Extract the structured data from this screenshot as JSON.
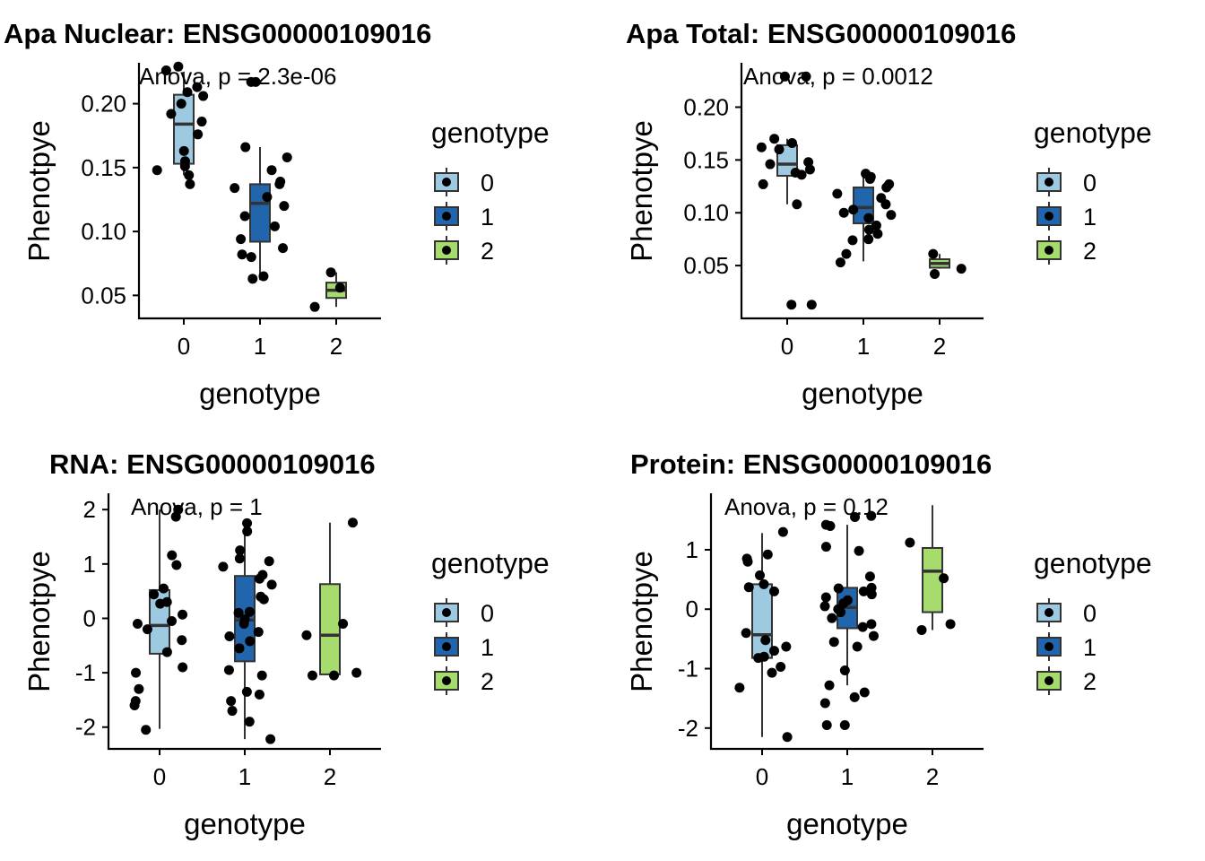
{
  "colors": {
    "g0": "#9ECAE1",
    "g1": "#2166AC",
    "g2": "#A6DB6E",
    "point": "#000000",
    "box_stroke": "#333333"
  },
  "chart_data": [
    {
      "type": "box",
      "title": "Apa Nuclear: ENSG00000109016",
      "annotation": "Anova, p = 2.3e-06",
      "xlabel": "genotype",
      "ylabel": "Phenotpye",
      "categories": [
        "0",
        "1",
        "2"
      ],
      "yticks": [
        0.05,
        0.1,
        0.15,
        0.2
      ],
      "ytick_labels": [
        "0.05",
        "0.10",
        "0.15",
        "0.20"
      ],
      "ylim": [
        0.032,
        0.232
      ],
      "legend": {
        "title": "genotype",
        "entries": [
          "0",
          "1",
          "2"
        ]
      },
      "boxes": [
        {
          "group": "0",
          "lower": 0.144,
          "q1": 0.153,
          "median": 0.184,
          "q3": 0.207,
          "upper": 0.225
        },
        {
          "group": "1",
          "lower": 0.062,
          "q1": 0.092,
          "median": 0.122,
          "q3": 0.137,
          "upper": 0.166
        },
        {
          "group": "2",
          "lower": 0.041,
          "q1": 0.048,
          "median": 0.054,
          "q3": 0.06,
          "upper": 0.068
        }
      ],
      "points": [
        {
          "x": 0,
          "y": 0.226
        },
        {
          "x": 0,
          "y": 0.213
        },
        {
          "x": 0,
          "y": 0.209
        },
        {
          "x": 0,
          "y": 0.2
        },
        {
          "x": 0,
          "y": 0.192
        },
        {
          "x": 0,
          "y": 0.186
        },
        {
          "x": 0,
          "y": 0.176
        },
        {
          "x": 0,
          "y": 0.163
        },
        {
          "x": 0,
          "y": 0.155
        },
        {
          "x": 0,
          "y": 0.151
        },
        {
          "x": 0,
          "y": 0.148
        },
        {
          "x": 0,
          "y": 0.144
        },
        {
          "x": 0,
          "y": 0.137
        },
        {
          "x": 0,
          "y": 0.229
        },
        {
          "x": 0,
          "y": 0.206
        },
        {
          "x": 1,
          "y": 0.217
        },
        {
          "x": 1,
          "y": 0.217
        },
        {
          "x": 1,
          "y": 0.166
        },
        {
          "x": 1,
          "y": 0.158
        },
        {
          "x": 1,
          "y": 0.148
        },
        {
          "x": 1,
          "y": 0.139
        },
        {
          "x": 1,
          "y": 0.137
        },
        {
          "x": 1,
          "y": 0.134
        },
        {
          "x": 1,
          "y": 0.127
        },
        {
          "x": 1,
          "y": 0.12
        },
        {
          "x": 1,
          "y": 0.112
        },
        {
          "x": 1,
          "y": 0.104
        },
        {
          "x": 1,
          "y": 0.094
        },
        {
          "x": 1,
          "y": 0.087
        },
        {
          "x": 1,
          "y": 0.082
        },
        {
          "x": 1,
          "y": 0.08
        },
        {
          "x": 1,
          "y": 0.065
        },
        {
          "x": 1,
          "y": 0.063
        },
        {
          "x": 2,
          "y": 0.068
        },
        {
          "x": 2,
          "y": 0.056
        },
        {
          "x": 2,
          "y": 0.041
        }
      ]
    },
    {
      "type": "box",
      "title": "Apa Total: ENSG00000109016",
      "annotation": "Anova, p = 0.0012",
      "xlabel": "genotype",
      "ylabel": "Phenotpye",
      "categories": [
        "0",
        "1",
        "2"
      ],
      "yticks": [
        0.05,
        0.1,
        0.15,
        0.2
      ],
      "ytick_labels": [
        "0.05",
        "0.10",
        "0.15",
        "0.20"
      ],
      "ylim": [
        0.0,
        0.242
      ],
      "legend": {
        "title": "genotype",
        "entries": [
          "0",
          "1",
          "2"
        ]
      },
      "boxes": [
        {
          "group": "0",
          "lower": 0.108,
          "q1": 0.135,
          "median": 0.146,
          "q3": 0.164,
          "upper": 0.17
        },
        {
          "group": "1",
          "lower": 0.054,
          "q1": 0.09,
          "median": 0.105,
          "q3": 0.124,
          "upper": 0.134
        },
        {
          "group": "2",
          "lower": 0.047,
          "q1": 0.048,
          "median": 0.052,
          "q3": 0.056,
          "upper": 0.061
        }
      ],
      "points": [
        {
          "x": 0,
          "y": 0.229
        },
        {
          "x": 0,
          "y": 0.229
        },
        {
          "x": 0,
          "y": 0.17
        },
        {
          "x": 0,
          "y": 0.166
        },
        {
          "x": 0,
          "y": 0.162
        },
        {
          "x": 0,
          "y": 0.16
        },
        {
          "x": 0,
          "y": 0.148
        },
        {
          "x": 0,
          "y": 0.146
        },
        {
          "x": 0,
          "y": 0.141
        },
        {
          "x": 0,
          "y": 0.138
        },
        {
          "x": 0,
          "y": 0.136
        },
        {
          "x": 0,
          "y": 0.127
        },
        {
          "x": 0,
          "y": 0.108
        },
        {
          "x": 0,
          "y": 0.013
        },
        {
          "x": 0,
          "y": 0.013
        },
        {
          "x": 1,
          "y": 0.137
        },
        {
          "x": 1,
          "y": 0.134
        },
        {
          "x": 1,
          "y": 0.132
        },
        {
          "x": 1,
          "y": 0.127
        },
        {
          "x": 1,
          "y": 0.124
        },
        {
          "x": 1,
          "y": 0.118
        },
        {
          "x": 1,
          "y": 0.114
        },
        {
          "x": 1,
          "y": 0.108
        },
        {
          "x": 1,
          "y": 0.103
        },
        {
          "x": 1,
          "y": 0.1
        },
        {
          "x": 1,
          "y": 0.098
        },
        {
          "x": 1,
          "y": 0.095
        },
        {
          "x": 1,
          "y": 0.088
        },
        {
          "x": 1,
          "y": 0.084
        },
        {
          "x": 1,
          "y": 0.08
        },
        {
          "x": 1,
          "y": 0.075
        },
        {
          "x": 1,
          "y": 0.074
        },
        {
          "x": 1,
          "y": 0.061
        },
        {
          "x": 1,
          "y": 0.053
        },
        {
          "x": 2,
          "y": 0.061
        },
        {
          "x": 2,
          "y": 0.047
        },
        {
          "x": 2,
          "y": 0.042
        }
      ]
    },
    {
      "type": "box",
      "title": "RNA: ENSG00000109016",
      "annotation": "Anova, p = 1",
      "xlabel": "genotype",
      "ylabel": "Phenotpye",
      "categories": [
        "0",
        "1",
        "2"
      ],
      "yticks": [
        -2,
        -1,
        0,
        1,
        2
      ],
      "ytick_labels": [
        "-2",
        "-1",
        "0",
        "1",
        "2"
      ],
      "ylim": [
        -2.4,
        2.3
      ],
      "legend": {
        "title": "genotype",
        "entries": [
          "0",
          "1",
          "2"
        ]
      },
      "boxes": [
        {
          "group": "0",
          "lower": -2.03,
          "q1": -0.65,
          "median": -0.13,
          "q3": 0.52,
          "upper": 2.0
        },
        {
          "group": "1",
          "lower": -2.22,
          "q1": -0.79,
          "median": -0.03,
          "q3": 0.78,
          "upper": 1.75
        },
        {
          "group": "2",
          "lower": -1.03,
          "q1": -1.03,
          "median": -0.31,
          "q3": 0.63,
          "upper": 1.76
        }
      ],
      "points": [
        {
          "x": 0,
          "y": 2.0
        },
        {
          "x": 0,
          "y": 1.87
        },
        {
          "x": 0,
          "y": 1.16
        },
        {
          "x": 0,
          "y": 0.98
        },
        {
          "x": 0,
          "y": 0.55
        },
        {
          "x": 0,
          "y": 0.44
        },
        {
          "x": 0,
          "y": 0.3
        },
        {
          "x": 0,
          "y": 0.27
        },
        {
          "x": 0,
          "y": 0.07
        },
        {
          "x": 0,
          "y": -0.05
        },
        {
          "x": 0,
          "y": -0.1
        },
        {
          "x": 0,
          "y": -0.2
        },
        {
          "x": 0,
          "y": -0.4
        },
        {
          "x": 0,
          "y": -0.62
        },
        {
          "x": 0,
          "y": -0.9
        },
        {
          "x": 0,
          "y": -1.0
        },
        {
          "x": 0,
          "y": -1.3
        },
        {
          "x": 0,
          "y": -1.52
        },
        {
          "x": 0,
          "y": -1.6
        },
        {
          "x": 0,
          "y": -2.05
        },
        {
          "x": 1,
          "y": 1.75
        },
        {
          "x": 1,
          "y": 1.6
        },
        {
          "x": 1,
          "y": 1.25
        },
        {
          "x": 1,
          "y": 1.1
        },
        {
          "x": 1,
          "y": 1.05
        },
        {
          "x": 1,
          "y": 0.95
        },
        {
          "x": 1,
          "y": 0.8
        },
        {
          "x": 1,
          "y": 0.73
        },
        {
          "x": 1,
          "y": 0.62
        },
        {
          "x": 1,
          "y": 0.4
        },
        {
          "x": 1,
          "y": 0.35
        },
        {
          "x": 1,
          "y": 0.12
        },
        {
          "x": 1,
          "y": 0.1
        },
        {
          "x": 1,
          "y": -0.02
        },
        {
          "x": 1,
          "y": -0.1
        },
        {
          "x": 1,
          "y": -0.25
        },
        {
          "x": 1,
          "y": -0.33
        },
        {
          "x": 1,
          "y": -0.42
        },
        {
          "x": 1,
          "y": -0.55
        },
        {
          "x": 1,
          "y": -0.95
        },
        {
          "x": 1,
          "y": -1.05
        },
        {
          "x": 1,
          "y": -1.35
        },
        {
          "x": 1,
          "y": -1.4
        },
        {
          "x": 1,
          "y": -1.52
        },
        {
          "x": 1,
          "y": -1.7
        },
        {
          "x": 1,
          "y": -1.9
        },
        {
          "x": 1,
          "y": -2.22
        },
        {
          "x": 2,
          "y": 1.76
        },
        {
          "x": 2,
          "y": -0.1
        },
        {
          "x": 2,
          "y": -0.31
        },
        {
          "x": 2,
          "y": -1.0
        },
        {
          "x": 2,
          "y": -1.05
        },
        {
          "x": 2,
          "y": -1.05
        }
      ]
    },
    {
      "type": "box",
      "title": "Protein: ENSG00000109016",
      "annotation": "Anova, p = 0.12",
      "xlabel": "genotype",
      "ylabel": "Phenotpye",
      "categories": [
        "0",
        "1",
        "2"
      ],
      "yticks": [
        -2,
        -1,
        0,
        1
      ],
      "ytick_labels": [
        "-2",
        "-1",
        "0",
        "1"
      ],
      "ylim": [
        -2.35,
        1.95
      ],
      "legend": {
        "title": "genotype",
        "entries": [
          "0",
          "1",
          "2"
        ]
      },
      "boxes": [
        {
          "group": "0",
          "lower": -2.15,
          "q1": -0.82,
          "median": -0.43,
          "q3": 0.42,
          "upper": 1.28
        },
        {
          "group": "1",
          "lower": -1.28,
          "q1": -0.32,
          "median": 0.03,
          "q3": 0.36,
          "upper": 1.42
        },
        {
          "group": "2",
          "lower": -0.35,
          "q1": -0.05,
          "median": 0.64,
          "q3": 1.03,
          "upper": 1.75
        }
      ],
      "points": [
        {
          "x": 0,
          "y": 1.3
        },
        {
          "x": 0,
          "y": 0.92
        },
        {
          "x": 0,
          "y": 0.85
        },
        {
          "x": 0,
          "y": 0.8
        },
        {
          "x": 0,
          "y": 0.57
        },
        {
          "x": 0,
          "y": 0.42
        },
        {
          "x": 0,
          "y": 0.37
        },
        {
          "x": 0,
          "y": 0.3
        },
        {
          "x": 0,
          "y": -0.4
        },
        {
          "x": 0,
          "y": -0.52
        },
        {
          "x": 0,
          "y": -0.63
        },
        {
          "x": 0,
          "y": -0.7
        },
        {
          "x": 0,
          "y": -0.8
        },
        {
          "x": 0,
          "y": -0.82
        },
        {
          "x": 0,
          "y": -0.97
        },
        {
          "x": 0,
          "y": -1.07
        },
        {
          "x": 0,
          "y": -1.32
        },
        {
          "x": 0,
          "y": -2.15
        },
        {
          "x": 1,
          "y": 1.57
        },
        {
          "x": 1,
          "y": 1.55
        },
        {
          "x": 1,
          "y": 1.42
        },
        {
          "x": 1,
          "y": 1.4
        },
        {
          "x": 1,
          "y": 1.05
        },
        {
          "x": 1,
          "y": 0.98
        },
        {
          "x": 1,
          "y": 0.55
        },
        {
          "x": 1,
          "y": 0.36
        },
        {
          "x": 1,
          "y": 0.35
        },
        {
          "x": 1,
          "y": 0.3
        },
        {
          "x": 1,
          "y": 0.25
        },
        {
          "x": 1,
          "y": 0.2
        },
        {
          "x": 1,
          "y": 0.15
        },
        {
          "x": 1,
          "y": 0.1
        },
        {
          "x": 1,
          "y": 0.05
        },
        {
          "x": 1,
          "y": 0.0
        },
        {
          "x": 1,
          "y": -0.05
        },
        {
          "x": 1,
          "y": -0.15
        },
        {
          "x": 1,
          "y": -0.25
        },
        {
          "x": 1,
          "y": -0.3
        },
        {
          "x": 1,
          "y": -0.45
        },
        {
          "x": 1,
          "y": -0.55
        },
        {
          "x": 1,
          "y": -0.63
        },
        {
          "x": 1,
          "y": -1.03
        },
        {
          "x": 1,
          "y": -1.28
        },
        {
          "x": 1,
          "y": -1.4
        },
        {
          "x": 1,
          "y": -1.48
        },
        {
          "x": 1,
          "y": -1.58
        },
        {
          "x": 1,
          "y": -1.95
        },
        {
          "x": 1,
          "y": -1.95
        },
        {
          "x": 2,
          "y": 1.12
        },
        {
          "x": 2,
          "y": 0.52
        },
        {
          "x": 2,
          "y": -0.25
        },
        {
          "x": 2,
          "y": -0.35
        }
      ]
    }
  ]
}
